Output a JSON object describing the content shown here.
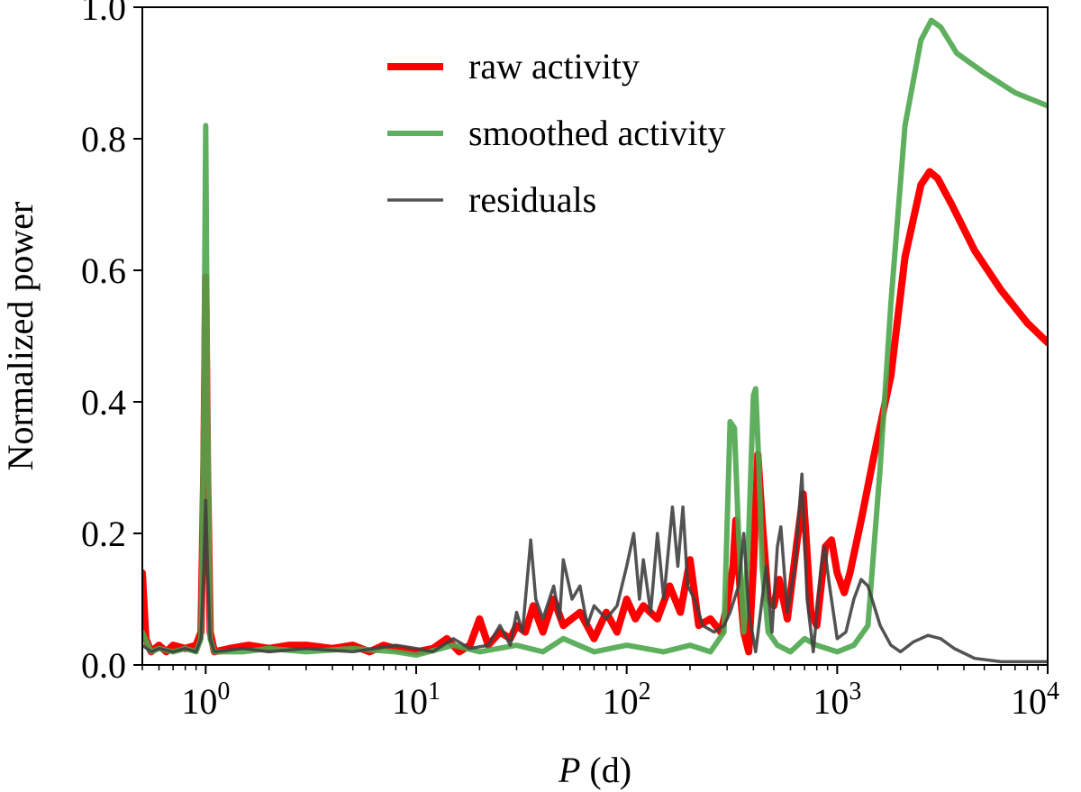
{
  "chart_data": {
    "type": "line",
    "title": "",
    "xlabel_italic": "P",
    "xlabel_rest": " (d)",
    "ylabel": "Normalized power",
    "xscale": "log",
    "xlim": [
      0.5,
      10000
    ],
    "ylim": [
      0.0,
      1.0
    ],
    "grid": false,
    "legend_position": "top-center",
    "xticks": [
      {
        "value": 1,
        "base": "10",
        "exp": "0"
      },
      {
        "value": 10,
        "base": "10",
        "exp": "1"
      },
      {
        "value": 100,
        "base": "10",
        "exp": "2"
      },
      {
        "value": 1000,
        "base": "10",
        "exp": "3"
      },
      {
        "value": 10000,
        "base": "10",
        "exp": "4"
      }
    ],
    "yticks": [
      {
        "value": 0.0,
        "label": "0.0"
      },
      {
        "value": 0.2,
        "label": "0.2"
      },
      {
        "value": 0.4,
        "label": "0.4"
      },
      {
        "value": 0.6,
        "label": "0.6"
      },
      {
        "value": 0.8,
        "label": "0.8"
      },
      {
        "value": 1.0,
        "label": "1.0"
      }
    ],
    "series": [
      {
        "name": "raw activity",
        "color": "#ff0000",
        "values": [
          [
            0.5,
            0.14
          ],
          [
            0.52,
            0.04
          ],
          [
            0.55,
            0.02
          ],
          [
            0.6,
            0.03
          ],
          [
            0.65,
            0.02
          ],
          [
            0.7,
            0.03
          ],
          [
            0.8,
            0.025
          ],
          [
            0.9,
            0.03
          ],
          [
            0.95,
            0.05
          ],
          [
            0.98,
            0.3
          ],
          [
            1.0,
            0.59
          ],
          [
            1.02,
            0.3
          ],
          [
            1.05,
            0.05
          ],
          [
            1.1,
            0.02
          ],
          [
            1.3,
            0.025
          ],
          [
            1.6,
            0.03
          ],
          [
            2.0,
            0.025
          ],
          [
            2.5,
            0.03
          ],
          [
            3,
            0.03
          ],
          [
            4,
            0.025
          ],
          [
            5,
            0.03
          ],
          [
            6,
            0.02
          ],
          [
            7,
            0.03
          ],
          [
            8,
            0.025
          ],
          [
            10,
            0.02
          ],
          [
            12,
            0.025
          ],
          [
            14,
            0.04
          ],
          [
            16,
            0.02
          ],
          [
            18,
            0.03
          ],
          [
            20,
            0.07
          ],
          [
            22,
            0.03
          ],
          [
            25,
            0.05
          ],
          [
            28,
            0.04
          ],
          [
            30,
            0.06
          ],
          [
            33,
            0.05
          ],
          [
            36,
            0.09
          ],
          [
            40,
            0.05
          ],
          [
            45,
            0.1
          ],
          [
            50,
            0.06
          ],
          [
            60,
            0.08
          ],
          [
            70,
            0.04
          ],
          [
            80,
            0.08
          ],
          [
            90,
            0.05
          ],
          [
            100,
            0.1
          ],
          [
            110,
            0.07
          ],
          [
            120,
            0.09
          ],
          [
            140,
            0.07
          ],
          [
            160,
            0.12
          ],
          [
            180,
            0.08
          ],
          [
            200,
            0.16
          ],
          [
            220,
            0.06
          ],
          [
            250,
            0.07
          ],
          [
            280,
            0.05
          ],
          [
            300,
            0.09
          ],
          [
            320,
            0.15
          ],
          [
            330,
            0.22
          ],
          [
            345,
            0.12
          ],
          [
            360,
            0.05
          ],
          [
            380,
            0.02
          ],
          [
            400,
            0.15
          ],
          [
            420,
            0.32
          ],
          [
            440,
            0.22
          ],
          [
            470,
            0.1
          ],
          [
            500,
            0.09
          ],
          [
            530,
            0.13
          ],
          [
            580,
            0.07
          ],
          [
            640,
            0.18
          ],
          [
            690,
            0.26
          ],
          [
            750,
            0.08
          ],
          [
            800,
            0.06
          ],
          [
            880,
            0.18
          ],
          [
            940,
            0.19
          ],
          [
            1000,
            0.14
          ],
          [
            1080,
            0.11
          ],
          [
            1150,
            0.14
          ],
          [
            1300,
            0.22
          ],
          [
            1500,
            0.32
          ],
          [
            1800,
            0.44
          ],
          [
            2100,
            0.62
          ],
          [
            2500,
            0.73
          ],
          [
            2750,
            0.75
          ],
          [
            3000,
            0.74
          ],
          [
            3500,
            0.7
          ],
          [
            4500,
            0.63
          ],
          [
            6000,
            0.57
          ],
          [
            8000,
            0.52
          ],
          [
            10000,
            0.49
          ]
        ]
      },
      {
        "name": "smoothed activity",
        "color": "#4da64d",
        "values": [
          [
            0.5,
            0.05
          ],
          [
            0.55,
            0.02
          ],
          [
            0.6,
            0.025
          ],
          [
            0.7,
            0.02
          ],
          [
            0.8,
            0.025
          ],
          [
            0.9,
            0.02
          ],
          [
            0.95,
            0.04
          ],
          [
            0.98,
            0.4
          ],
          [
            1.0,
            0.82
          ],
          [
            1.02,
            0.4
          ],
          [
            1.05,
            0.04
          ],
          [
            1.1,
            0.02
          ],
          [
            1.5,
            0.02
          ],
          [
            2,
            0.025
          ],
          [
            3,
            0.02
          ],
          [
            5,
            0.025
          ],
          [
            8,
            0.02
          ],
          [
            10,
            0.015
          ],
          [
            15,
            0.03
          ],
          [
            20,
            0.02
          ],
          [
            30,
            0.03
          ],
          [
            40,
            0.02
          ],
          [
            50,
            0.04
          ],
          [
            70,
            0.02
          ],
          [
            100,
            0.03
          ],
          [
            150,
            0.02
          ],
          [
            200,
            0.03
          ],
          [
            250,
            0.02
          ],
          [
            290,
            0.05
          ],
          [
            310,
            0.37
          ],
          [
            325,
            0.36
          ],
          [
            340,
            0.2
          ],
          [
            360,
            0.05
          ],
          [
            380,
            0.2
          ],
          [
            400,
            0.41
          ],
          [
            410,
            0.42
          ],
          [
            425,
            0.3
          ],
          [
            440,
            0.15
          ],
          [
            470,
            0.05
          ],
          [
            520,
            0.03
          ],
          [
            600,
            0.02
          ],
          [
            700,
            0.04
          ],
          [
            800,
            0.03
          ],
          [
            1000,
            0.02
          ],
          [
            1200,
            0.03
          ],
          [
            1400,
            0.06
          ],
          [
            1600,
            0.3
          ],
          [
            1800,
            0.55
          ],
          [
            2100,
            0.82
          ],
          [
            2500,
            0.95
          ],
          [
            2800,
            0.98
          ],
          [
            3100,
            0.97
          ],
          [
            3700,
            0.93
          ],
          [
            5000,
            0.9
          ],
          [
            7000,
            0.87
          ],
          [
            10000,
            0.85
          ]
        ]
      },
      {
        "name": "residuals",
        "color": "#404040",
        "values": [
          [
            0.5,
            0.03
          ],
          [
            0.55,
            0.02
          ],
          [
            0.6,
            0.025
          ],
          [
            0.7,
            0.02
          ],
          [
            0.8,
            0.025
          ],
          [
            0.9,
            0.02
          ],
          [
            0.95,
            0.04
          ],
          [
            0.98,
            0.15
          ],
          [
            1.0,
            0.25
          ],
          [
            1.02,
            0.15
          ],
          [
            1.05,
            0.04
          ],
          [
            1.1,
            0.02
          ],
          [
            1.5,
            0.025
          ],
          [
            2,
            0.02
          ],
          [
            3,
            0.025
          ],
          [
            5,
            0.02
          ],
          [
            8,
            0.03
          ],
          [
            10,
            0.025
          ],
          [
            12,
            0.02
          ],
          [
            15,
            0.04
          ],
          [
            18,
            0.025
          ],
          [
            22,
            0.03
          ],
          [
            25,
            0.06
          ],
          [
            28,
            0.03
          ],
          [
            30,
            0.08
          ],
          [
            32,
            0.05
          ],
          [
            35,
            0.19
          ],
          [
            37,
            0.1
          ],
          [
            40,
            0.07
          ],
          [
            45,
            0.12
          ],
          [
            48,
            0.07
          ],
          [
            50,
            0.16
          ],
          [
            55,
            0.1
          ],
          [
            60,
            0.12
          ],
          [
            65,
            0.06
          ],
          [
            70,
            0.09
          ],
          [
            80,
            0.07
          ],
          [
            90,
            0.09
          ],
          [
            100,
            0.15
          ],
          [
            108,
            0.2
          ],
          [
            115,
            0.1
          ],
          [
            120,
            0.16
          ],
          [
            130,
            0.08
          ],
          [
            140,
            0.2
          ],
          [
            150,
            0.1
          ],
          [
            165,
            0.24
          ],
          [
            175,
            0.15
          ],
          [
            185,
            0.24
          ],
          [
            195,
            0.12
          ],
          [
            210,
            0.1
          ],
          [
            230,
            0.06
          ],
          [
            260,
            0.05
          ],
          [
            290,
            0.06
          ],
          [
            310,
            0.08
          ],
          [
            340,
            0.12
          ],
          [
            360,
            0.2
          ],
          [
            380,
            0.08
          ],
          [
            410,
            0.02
          ],
          [
            460,
            0.15
          ],
          [
            490,
            0.05
          ],
          [
            520,
            0.18
          ],
          [
            540,
            0.21
          ],
          [
            580,
            0.08
          ],
          [
            630,
            0.15
          ],
          [
            680,
            0.29
          ],
          [
            720,
            0.1
          ],
          [
            770,
            0.02
          ],
          [
            840,
            0.15
          ],
          [
            870,
            0.18
          ],
          [
            920,
            0.12
          ],
          [
            1000,
            0.04
          ],
          [
            1100,
            0.05
          ],
          [
            1200,
            0.1
          ],
          [
            1300,
            0.13
          ],
          [
            1400,
            0.12
          ],
          [
            1600,
            0.06
          ],
          [
            1800,
            0.03
          ],
          [
            2000,
            0.02
          ],
          [
            2300,
            0.035
          ],
          [
            2700,
            0.045
          ],
          [
            3100,
            0.04
          ],
          [
            3600,
            0.025
          ],
          [
            4500,
            0.01
          ],
          [
            6000,
            0.005
          ],
          [
            8000,
            0.005
          ],
          [
            10000,
            0.005
          ]
        ]
      }
    ]
  }
}
